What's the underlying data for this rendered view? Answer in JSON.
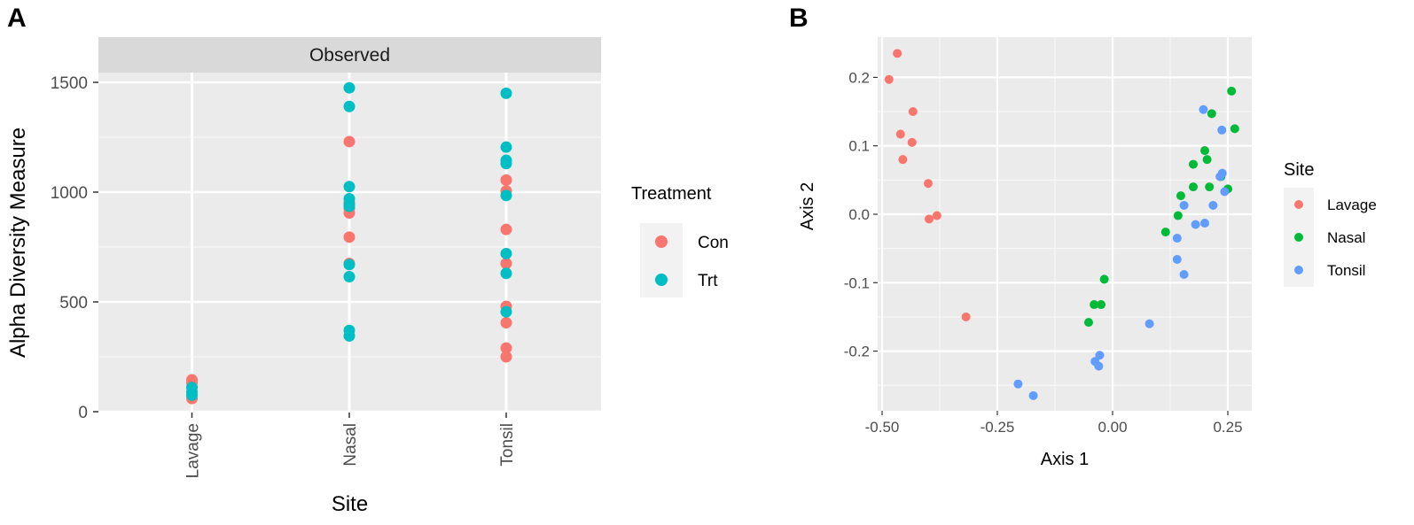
{
  "chart_data": [
    {
      "panel": "A",
      "type": "scatter",
      "strip_label": "Observed",
      "xlabel": "Site",
      "ylabel": "Alpha Diversity Measure",
      "categories": [
        "Lavage",
        "Nasal",
        "Tonsil"
      ],
      "ylim": [
        0,
        1500
      ],
      "yticks": [
        0,
        500,
        1000,
        1500
      ],
      "legend": {
        "title": "Treatment",
        "position": "right",
        "entries": [
          {
            "label": "Con",
            "color": "#F8766D"
          },
          {
            "label": "Trt",
            "color": "#00BFC4"
          }
        ]
      },
      "series": [
        {
          "name": "Con",
          "color": "#F8766D",
          "points": [
            {
              "x": "Lavage",
              "y": 145
            },
            {
              "x": "Lavage",
              "y": 130
            },
            {
              "x": "Lavage",
              "y": 60
            },
            {
              "x": "Nasal",
              "y": 1230
            },
            {
              "x": "Nasal",
              "y": 955
            },
            {
              "x": "Nasal",
              "y": 925
            },
            {
              "x": "Nasal",
              "y": 905
            },
            {
              "x": "Nasal",
              "y": 795
            },
            {
              "x": "Nasal",
              "y": 675
            },
            {
              "x": "Tonsil",
              "y": 1055
            },
            {
              "x": "Tonsil",
              "y": 1005
            },
            {
              "x": "Tonsil",
              "y": 830
            },
            {
              "x": "Tonsil",
              "y": 675
            },
            {
              "x": "Tonsil",
              "y": 480
            },
            {
              "x": "Tonsil",
              "y": 405
            },
            {
              "x": "Tonsil",
              "y": 290
            },
            {
              "x": "Tonsil",
              "y": 250
            }
          ]
        },
        {
          "name": "Trt",
          "color": "#00BFC4",
          "points": [
            {
              "x": "Lavage",
              "y": 110
            },
            {
              "x": "Lavage",
              "y": 90
            },
            {
              "x": "Lavage",
              "y": 75
            },
            {
              "x": "Nasal",
              "y": 1475
            },
            {
              "x": "Nasal",
              "y": 1390
            },
            {
              "x": "Nasal",
              "y": 1025
            },
            {
              "x": "Nasal",
              "y": 970
            },
            {
              "x": "Nasal",
              "y": 945
            },
            {
              "x": "Nasal",
              "y": 935
            },
            {
              "x": "Nasal",
              "y": 670
            },
            {
              "x": "Nasal",
              "y": 615
            },
            {
              "x": "Nasal",
              "y": 370
            },
            {
              "x": "Nasal",
              "y": 345
            },
            {
              "x": "Tonsil",
              "y": 1450
            },
            {
              "x": "Tonsil",
              "y": 1205
            },
            {
              "x": "Tonsil",
              "y": 1145
            },
            {
              "x": "Tonsil",
              "y": 1130
            },
            {
              "x": "Tonsil",
              "y": 985
            },
            {
              "x": "Tonsil",
              "y": 720
            },
            {
              "x": "Tonsil",
              "y": 630
            },
            {
              "x": "Tonsil",
              "y": 455
            }
          ]
        }
      ]
    },
    {
      "panel": "B",
      "type": "scatter",
      "xlabel": "Axis 1",
      "ylabel": "Axis 2",
      "xlim": [
        -0.51,
        0.29
      ],
      "ylim": [
        -0.285,
        0.255
      ],
      "xticks": [
        -0.5,
        -0.25,
        0,
        0.25
      ],
      "xtick_labels": [
        "-0.50",
        "-0.25",
        "0.00",
        "0.25"
      ],
      "yticks": [
        -0.2,
        -0.1,
        0,
        0.1,
        0.2
      ],
      "ytick_labels": [
        "-0.2",
        "-0.1",
        "0.0",
        "0.1",
        "0.2"
      ],
      "legend": {
        "title": "Site",
        "position": "right",
        "entries": [
          {
            "label": "Lavage",
            "color": "#F8766D"
          },
          {
            "label": "Nasal",
            "color": "#00BA38"
          },
          {
            "label": "Tonsil",
            "color": "#619CFF"
          }
        ]
      },
      "series": [
        {
          "name": "Lavage",
          "color": "#F8766D",
          "points": [
            [
              -0.467,
              0.235
            ],
            [
              -0.485,
              0.197
            ],
            [
              -0.433,
              0.15
            ],
            [
              -0.46,
              0.117
            ],
            [
              -0.435,
              0.105
            ],
            [
              -0.455,
              0.08
            ],
            [
              -0.4,
              0.045
            ],
            [
              -0.398,
              -0.007
            ],
            [
              -0.381,
              -0.002
            ],
            [
              -0.318,
              -0.15
            ]
          ]
        },
        {
          "name": "Nasal",
          "color": "#00BA38",
          "points": [
            [
              0.258,
              0.18
            ],
            [
              0.215,
              0.147
            ],
            [
              0.265,
              0.125
            ],
            [
              0.2,
              0.093
            ],
            [
              0.205,
              0.08
            ],
            [
              0.175,
              0.073
            ],
            [
              0.21,
              0.04
            ],
            [
              0.175,
              0.04
            ],
            [
              0.25,
              0.037
            ],
            [
              0.148,
              0.027
            ],
            [
              0.142,
              -0.002
            ],
            [
              0.115,
              -0.026
            ],
            [
              -0.018,
              -0.095
            ],
            [
              -0.04,
              -0.132
            ],
            [
              -0.025,
              -0.132
            ],
            [
              -0.052,
              -0.158
            ],
            [
              0.235,
              0.055
            ]
          ]
        },
        {
          "name": "Tonsil",
          "color": "#619CFF",
          "points": [
            [
              0.197,
              0.153
            ],
            [
              0.237,
              0.123
            ],
            [
              0.238,
              0.06
            ],
            [
              0.233,
              0.055
            ],
            [
              0.243,
              0.033
            ],
            [
              0.155,
              0.013
            ],
            [
              0.218,
              0.013
            ],
            [
              0.18,
              -0.015
            ],
            [
              0.2,
              -0.013
            ],
            [
              0.14,
              -0.035
            ],
            [
              0.14,
              -0.066
            ],
            [
              0.155,
              -0.088
            ],
            [
              0.08,
              -0.16
            ],
            [
              -0.028,
              -0.206
            ],
            [
              -0.038,
              -0.215
            ],
            [
              -0.03,
              -0.222
            ],
            [
              -0.205,
              -0.248
            ],
            [
              -0.172,
              -0.265
            ]
          ]
        }
      ]
    }
  ]
}
